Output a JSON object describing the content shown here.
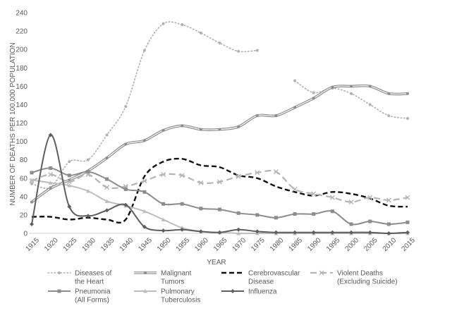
{
  "chart_data": {
    "type": "line",
    "title": "",
    "xlabel": "YEAR",
    "ylabel": "NUMBER OF DEATHS PER 100,000 POPULATION",
    "ylim": [
      0,
      240
    ],
    "yticks": [
      0,
      20,
      40,
      60,
      80,
      100,
      120,
      140,
      160,
      180,
      200,
      220,
      240
    ],
    "x": [
      1915,
      1920,
      1925,
      1930,
      1935,
      1940,
      1945,
      1950,
      1955,
      1960,
      1965,
      1970,
      1975,
      1980,
      1985,
      1990,
      1995,
      2000,
      2005,
      2010,
      2015
    ],
    "grid": false,
    "legend_position": "bottom",
    "series": [
      {
        "name": "Diseases of the Heart",
        "legend_lines": [
          "Diseases of",
          "the Heart"
        ],
        "color": "#b0b0b0",
        "style": "dotted",
        "marker": "circle",
        "values": [
          54,
          50,
          78,
          80,
          107,
          138,
          199,
          228,
          227,
          218,
          207,
          198,
          199,
          null,
          166,
          153,
          158,
          152,
          140,
          128,
          125
        ]
      },
      {
        "name": "Malignant Tumors",
        "legend_lines": [
          "Malignant",
          "Tumors"
        ],
        "color": "#8c8c8c",
        "style": "double",
        "marker": "circle",
        "values": [
          34,
          49,
          58,
          68,
          82,
          97,
          101,
          112,
          117,
          113,
          113,
          116,
          128,
          128,
          137,
          147,
          159,
          160,
          160,
          152,
          152
        ]
      },
      {
        "name": "Cerebrovascular Disease",
        "legend_lines": [
          "Cerebrovascular",
          "Disease"
        ],
        "color": "#111111",
        "style": "dashed",
        "marker": "none",
        "values": [
          18,
          18,
          15,
          17,
          15,
          15,
          62,
          78,
          81,
          74,
          72,
          63,
          60,
          51,
          45,
          41,
          45,
          43,
          38,
          30,
          29
        ]
      },
      {
        "name": "Violent Deaths (Excluding Suicide)",
        "legend_lines": [
          "Violent Deaths",
          "(Excluding Suicide)"
        ],
        "color": "#b5b5b5",
        "style": "dashed",
        "marker": "x",
        "values": [
          57,
          64,
          56,
          64,
          50,
          51,
          57,
          64,
          63,
          55,
          56,
          62,
          66,
          67,
          48,
          43,
          39,
          34,
          39,
          36,
          39
        ]
      },
      {
        "name": "Pneumonia (All Forms)",
        "legend_lines": [
          "Pneumonia",
          "(All Forms)"
        ],
        "color": "#8c8c8c",
        "style": "solid",
        "marker": "square",
        "values": [
          66,
          71,
          63,
          67,
          59,
          48,
          45,
          32,
          32,
          27,
          26,
          22,
          20,
          17,
          21,
          21,
          24,
          10,
          13,
          10,
          12
        ]
      },
      {
        "name": "Pulmonary Tuberculosis",
        "legend_lines": [
          "Pulmonary",
          "Tuberculosis"
        ],
        "color": "#bdbdbd",
        "style": "solid",
        "marker": "triangle",
        "values": [
          58,
          55,
          52,
          46,
          35,
          30,
          24,
          15,
          6,
          2,
          1,
          0,
          0,
          0,
          0,
          0,
          0,
          0,
          0,
          0,
          0
        ]
      },
      {
        "name": "Influenza",
        "legend_lines": [
          "Influenza"
        ],
        "color": "#5e5e5e",
        "style": "solid",
        "marker": "diamond",
        "values": [
          10,
          107,
          29,
          19,
          25,
          31,
          7,
          3,
          4,
          2,
          1,
          4,
          2,
          1,
          1,
          1,
          1,
          1,
          1,
          0,
          1
        ]
      }
    ]
  }
}
